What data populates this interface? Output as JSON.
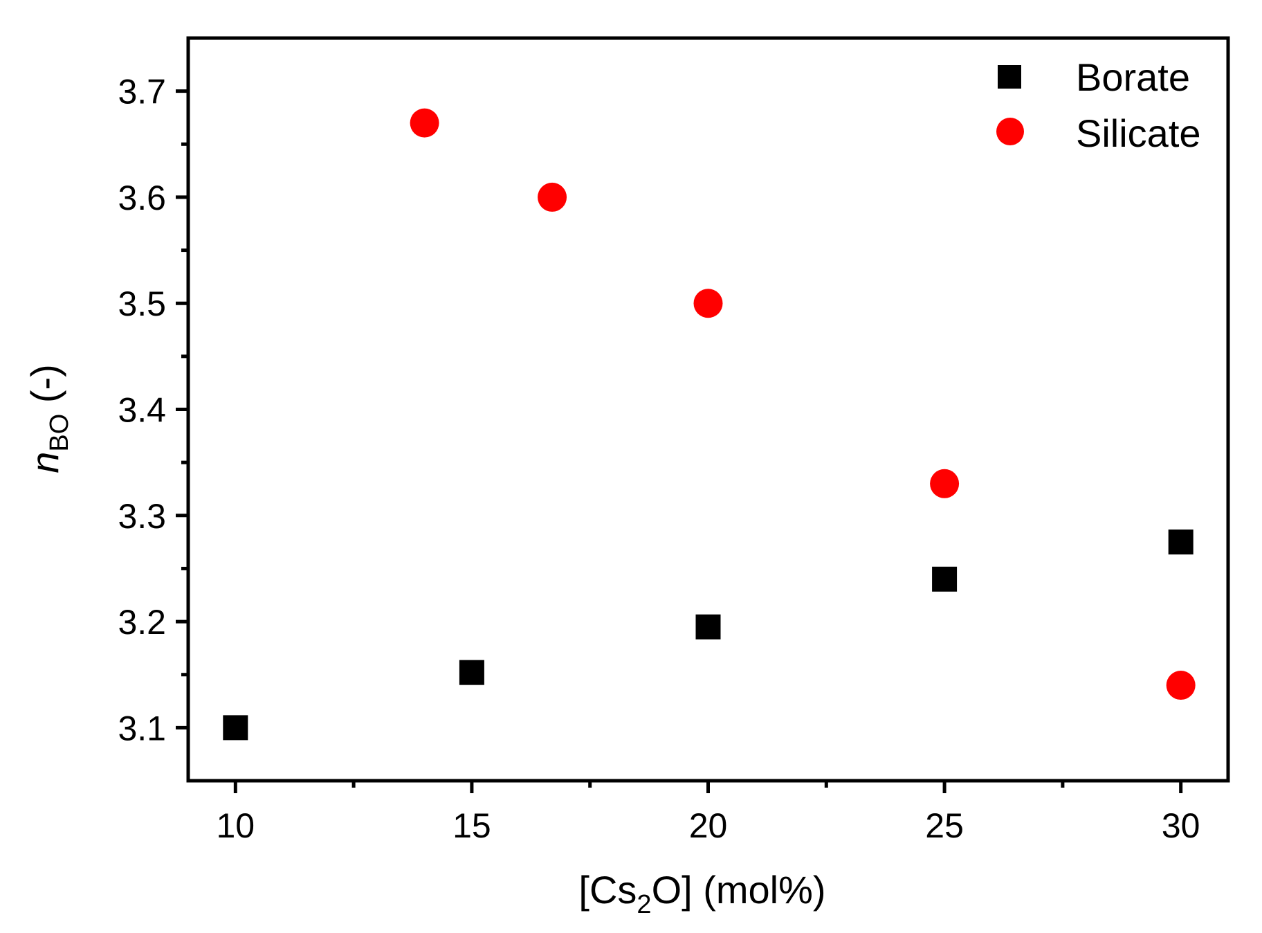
{
  "chart_data": {
    "type": "scatter",
    "xlabel": {
      "prefix": "[Cs",
      "sub": "2",
      "suffix": "O] (mol%)"
    },
    "ylabel": {
      "main": "n",
      "sub": "BO",
      "suffix": " (-)"
    },
    "xlim": [
      9,
      31
    ],
    "ylim": [
      3.05,
      3.75
    ],
    "xticks": [
      10,
      15,
      20,
      25,
      30
    ],
    "xtick_labels": [
      "10",
      "15",
      "20",
      "25",
      "30"
    ],
    "xminor": [
      12.5,
      17.5,
      22.5,
      27.5
    ],
    "yticks": [
      3.1,
      3.2,
      3.3,
      3.4,
      3.5,
      3.6,
      3.7
    ],
    "ytick_labels": [
      "3.1",
      "3.2",
      "3.3",
      "3.4",
      "3.5",
      "3.6",
      "3.7"
    ],
    "yminor": [
      3.15,
      3.25,
      3.35,
      3.45,
      3.55,
      3.65
    ],
    "grid": false,
    "legend": "top-right",
    "series": [
      {
        "name": "Borate",
        "marker": "square",
        "color": "#000000",
        "x": [
          10,
          15,
          20,
          25,
          30
        ],
        "y": [
          3.1,
          3.152,
          3.195,
          3.24,
          3.275
        ]
      },
      {
        "name": "Silicate",
        "marker": "circle",
        "color": "#ff0000",
        "x": [
          14,
          16.7,
          20,
          25,
          30
        ],
        "y": [
          3.67,
          3.6,
          3.5,
          3.33,
          3.14
        ]
      }
    ]
  }
}
